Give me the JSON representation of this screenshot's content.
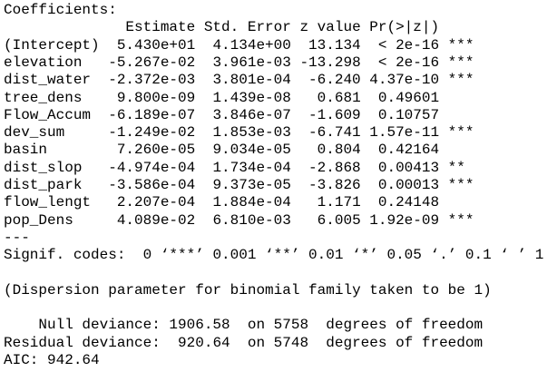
{
  "header": "Coefficients:",
  "table": {
    "columns": [
      "Estimate",
      "Std. Error",
      "z value",
      "Pr(>|z|)"
    ],
    "rows": [
      [
        "(Intercept)",
        "5.430e+01",
        "4.134e+00",
        "13.134",
        "< 2e-16",
        "***"
      ],
      [
        "elevation",
        "-5.267e-02",
        "3.961e-03",
        "-13.298",
        "< 2e-16",
        "***"
      ],
      [
        "dist_water",
        "-2.372e-03",
        "3.801e-04",
        "-6.240",
        "4.37e-10",
        "***"
      ],
      [
        "tree_dens",
        "9.800e-09",
        "1.439e-08",
        "0.681",
        "0.49601"
      ],
      [
        "Flow_Accum",
        "-6.189e-07",
        "3.846e-07",
        "-1.609",
        "0.10757"
      ],
      [
        "dev_sum",
        "-1.249e-02",
        "1.853e-03",
        "-6.741",
        "1.57e-11",
        "***"
      ],
      [
        "basin",
        "7.260e-05",
        "9.034e-05",
        "0.804",
        "0.42164"
      ],
      [
        "dist_slop",
        "-4.974e-04",
        "1.734e-04",
        "-2.868",
        "0.00413",
        "**"
      ],
      [
        "dist_park",
        "-3.586e-04",
        "9.373e-05",
        "-3.826",
        "0.00013",
        "***"
      ],
      [
        "flow_lengt",
        "2.207e-04",
        "1.884e-04",
        "1.171",
        "0.24148"
      ],
      [
        "pop_Dens",
        "4.089e-02",
        "6.810e-03",
        "6.005",
        "1.92e-09",
        "***"
      ]
    ]
  },
  "separator": "---",
  "signif_codes": "Signif. codes:  0 ‘***’ 0.001 ‘**’ 0.01 ‘*’ 0.05 ‘.’ 0.1 ‘ ’ 1",
  "dispersion": "(Dispersion parameter for binomial family taken to be 1)",
  "deviance": [
    {
      "label": "Null deviance:",
      "value": "1906.58",
      "df": "on 5758  degrees of freedom"
    },
    {
      "label": "Residual deviance:",
      "value": "920.64",
      "df": "on 5748  degrees of freedom"
    }
  ],
  "aic": "AIC: 942.64"
}
